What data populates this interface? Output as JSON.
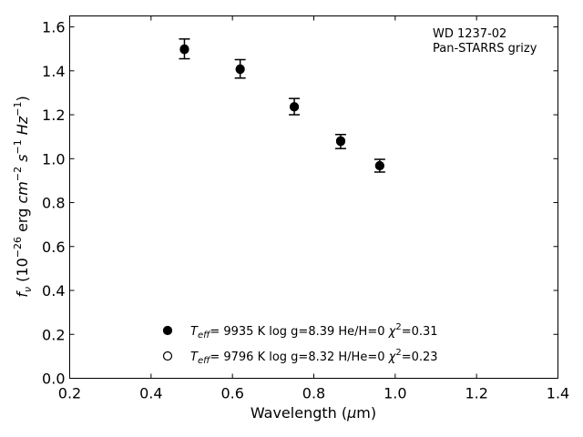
{
  "chart_data": {
    "type": "scatter",
    "annotation": [
      "WD 1237-02",
      "Pan-STARRS grizy"
    ],
    "xlabel": "Wavelength (μm)",
    "ylabel": "f_ν (10^−26 erg cm^−2 s^−1 Hz^−1)",
    "xlim": [
      0.2,
      1.4
    ],
    "ylim": [
      0.0,
      1.65
    ],
    "x_ticks": [
      0.2,
      0.4,
      0.6,
      0.8,
      1.0,
      1.2,
      1.4
    ],
    "x_tick_labels": [
      "0.2",
      "0.4",
      "0.6",
      "0.8",
      "1.0",
      "1.2",
      "1.4"
    ],
    "y_ticks": [
      0.0,
      0.2,
      0.4,
      0.6,
      0.8,
      1.0,
      1.2,
      1.4,
      1.6
    ],
    "y_tick_labels": [
      "0.0",
      "0.2",
      "0.4",
      "0.6",
      "0.8",
      "1.0",
      "1.2",
      "1.4",
      "1.6"
    ],
    "grid": false,
    "legend_placement": "bottom-center",
    "series": [
      {
        "marker": "filled-circle",
        "color": "#000000",
        "legend": {
          "teff_value": "9935 K",
          "logg": "log g=8.39",
          "comp": "He/H=0",
          "chi2_value": "=0.31"
        },
        "x": [
          0.482,
          0.619,
          0.752,
          0.866,
          0.962
        ],
        "y": [
          1.5,
          1.409,
          1.237,
          1.078,
          0.968
        ],
        "yerr": [
          0.045,
          0.042,
          0.037,
          0.032,
          0.029
        ]
      },
      {
        "marker": "open-circle",
        "color": "#000000",
        "legend": {
          "teff_value": "9796 K",
          "logg": "log g=8.32",
          "comp": "H/He=0",
          "chi2_value": "=0.23"
        },
        "x": [
          0.482,
          0.619,
          0.752,
          0.866,
          0.962
        ],
        "y": [
          1.497,
          1.407,
          1.236,
          1.081,
          0.968
        ]
      }
    ]
  }
}
